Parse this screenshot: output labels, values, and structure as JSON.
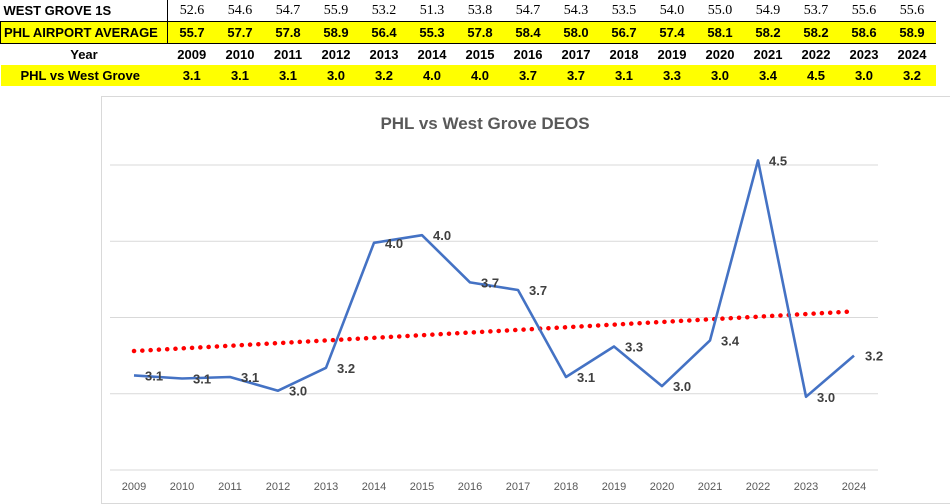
{
  "sheet": {
    "row_west_grove": {
      "label": "WEST GROVE 1S",
      "values": [
        "52.6",
        "54.6",
        "54.7",
        "55.9",
        "53.2",
        "51.3",
        "53.8",
        "54.7",
        "54.3",
        "53.5",
        "54.0",
        "55.0",
        "54.9",
        "53.7",
        "55.6",
        "55.6"
      ]
    },
    "row_phl": {
      "label": "PHL AIRPORT AVERAGE",
      "values": [
        "55.7",
        "57.7",
        "57.8",
        "58.9",
        "56.4",
        "55.3",
        "57.8",
        "58.4",
        "58.0",
        "56.7",
        "57.4",
        "58.1",
        "58.2",
        "58.2",
        "58.6",
        "58.9"
      ]
    },
    "row_year": {
      "label": "Year",
      "values": [
        "2009",
        "2010",
        "2011",
        "2012",
        "2013",
        "2014",
        "2015",
        "2016",
        "2017",
        "2018",
        "2019",
        "2020",
        "2021",
        "2022",
        "2023",
        "2024"
      ]
    },
    "row_diff": {
      "label": "PHL vs West Grove",
      "values": [
        "3.1",
        "3.1",
        "3.1",
        "3.0",
        "3.2",
        "4.0",
        "4.0",
        "3.7",
        "3.7",
        "3.1",
        "3.3",
        "3.0",
        "3.4",
        "4.5",
        "3.0",
        "3.2"
      ]
    }
  },
  "colors": {
    "highlight": "#ffff00",
    "series": "#4472c4",
    "trendline": "#ff0000",
    "grid": "#d9d9d9",
    "text": "#595959"
  },
  "chart_data": {
    "type": "line",
    "title": "PHL vs West Grove DEOS",
    "xlabel": "",
    "ylabel": "",
    "categories": [
      "2009",
      "2010",
      "2011",
      "2012",
      "2013",
      "2014",
      "2015",
      "2016",
      "2017",
      "2018",
      "2019",
      "2020",
      "2021",
      "2022",
      "2023",
      "2024"
    ],
    "series": [
      {
        "values": [
          3.12,
          3.1,
          3.11,
          3.02,
          3.17,
          3.99,
          4.04,
          3.73,
          3.68,
          3.11,
          3.31,
          3.05,
          3.35,
          4.53,
          2.98,
          3.25
        ],
        "data_labels": [
          "3.1",
          "3.1",
          "3.1",
          "3.0",
          "3.2",
          "4.0",
          "4.0",
          "3.7",
          "3.7",
          "3.1",
          "3.3",
          "3.0",
          "3.4",
          "4.5",
          "3.0",
          "3.2"
        ]
      }
    ],
    "trendline": {
      "type": "linear",
      "style": "dotted",
      "start": 3.28,
      "end": 3.54
    },
    "ylim": [
      2.5,
      4.5
    ],
    "yticks": [
      "2.5",
      "3.0",
      "3.5",
      "4.0",
      "4.5"
    ],
    "grid": true,
    "legend": "none"
  }
}
